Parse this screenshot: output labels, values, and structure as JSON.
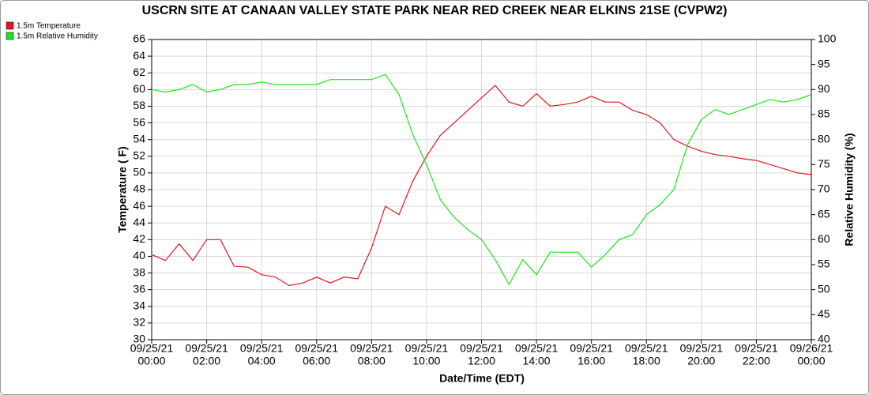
{
  "chart_data": {
    "type": "line",
    "title": "USCRN SITE AT CANAAN VALLEY STATE PARK NEAR RED CREEK NEAR ELKINS 21SE (CVPW2)",
    "x_label": "Date/Time (EDT)",
    "y_label": "Temperature ( F)",
    "y2_label": "Relative Humidity (%)",
    "grid": true,
    "legend": "top-left",
    "x": [
      "09/25/21 00:00",
      "09/25/21 00:30",
      "09/25/21 01:00",
      "09/25/21 01:30",
      "09/25/21 02:00",
      "09/25/21 02:30",
      "09/25/21 03:00",
      "09/25/21 03:30",
      "09/25/21 04:00",
      "09/25/21 04:30",
      "09/25/21 05:00",
      "09/25/21 05:30",
      "09/25/21 06:00",
      "09/25/21 06:30",
      "09/25/21 07:00",
      "09/25/21 07:30",
      "09/25/21 08:00",
      "09/25/21 08:30",
      "09/25/21 09:00",
      "09/25/21 09:30",
      "09/25/21 10:00",
      "09/25/21 10:30",
      "09/25/21 11:00",
      "09/25/21 11:30",
      "09/25/21 12:00",
      "09/25/21 12:30",
      "09/25/21 13:00",
      "09/25/21 13:30",
      "09/25/21 14:00",
      "09/25/21 14:30",
      "09/25/21 15:00",
      "09/25/21 15:30",
      "09/25/21 16:00",
      "09/25/21 16:30",
      "09/25/21 17:00",
      "09/25/21 17:30",
      "09/25/21 18:00",
      "09/25/21 18:30",
      "09/25/21 19:00",
      "09/25/21 19:30",
      "09/25/21 20:00",
      "09/25/21 20:30",
      "09/25/21 21:00",
      "09/25/21 21:30",
      "09/25/21 22:00",
      "09/25/21 22:30",
      "09/25/21 23:00",
      "09/25/21 23:30",
      "09/26/21 00:00"
    ],
    "series": [
      {
        "name": "1.5m Temperature",
        "color": "#e8141e",
        "axis": "y",
        "values": [
          40.2,
          39.5,
          41.5,
          39.5,
          42,
          42,
          38.8,
          38.7,
          37.8,
          37.5,
          36.5,
          36.8,
          37.5,
          36.8,
          37.5,
          37.3,
          41,
          46,
          45,
          49,
          52,
          54.5,
          56,
          57.5,
          59,
          60.5,
          58.5,
          58,
          59.5,
          58,
          58.2,
          58.5,
          59.2,
          58.5,
          58.5,
          57.5,
          57,
          56,
          54,
          53.2,
          52.6,
          52.2,
          52,
          51.7,
          51.5,
          51,
          50.5,
          50,
          49.8
        ]
      },
      {
        "name": "1.5m Relative Humidity",
        "color": "#19e619",
        "axis": "y2",
        "values": [
          90,
          89.5,
          90,
          91,
          89.5,
          90,
          91,
          91,
          91.5,
          91,
          91,
          91,
          91,
          92,
          92,
          92,
          92,
          93,
          89,
          81,
          75,
          68,
          64.5,
          62,
          60,
          56,
          51,
          56,
          53,
          57.5,
          57.5,
          57.5,
          54.5,
          57,
          60,
          61,
          65,
          67,
          70,
          79,
          84,
          86,
          85,
          86,
          87,
          88,
          87.5,
          88,
          89
        ]
      }
    ],
    "xlim": [
      "09/25/21 00:00",
      "09/26/21 00:00"
    ],
    "xticks": [
      {
        "value": "09/25/21 00:00",
        "label": [
          "09/25/21",
          "00:00"
        ]
      },
      {
        "value": "09/25/21 02:00",
        "label": [
          "09/25/21",
          "02:00"
        ]
      },
      {
        "value": "09/25/21 04:00",
        "label": [
          "09/25/21",
          "04:00"
        ]
      },
      {
        "value": "09/25/21 06:00",
        "label": [
          "09/25/21",
          "06:00"
        ]
      },
      {
        "value": "09/25/21 08:00",
        "label": [
          "09/25/21",
          "08:00"
        ]
      },
      {
        "value": "09/25/21 10:00",
        "label": [
          "09/25/21",
          "10:00"
        ]
      },
      {
        "value": "09/25/21 12:00",
        "label": [
          "09/25/21",
          "12:00"
        ]
      },
      {
        "value": "09/25/21 14:00",
        "label": [
          "09/25/21",
          "14:00"
        ]
      },
      {
        "value": "09/25/21 16:00",
        "label": [
          "09/25/21",
          "16:00"
        ]
      },
      {
        "value": "09/25/21 18:00",
        "label": [
          "09/25/21",
          "18:00"
        ]
      },
      {
        "value": "09/25/21 20:00",
        "label": [
          "09/25/21",
          "20:00"
        ]
      },
      {
        "value": "09/25/21 22:00",
        "label": [
          "09/25/21",
          "22:00"
        ]
      },
      {
        "value": "09/26/21 00:00",
        "label": [
          "09/26/21",
          "00:00"
        ]
      }
    ],
    "ylim": [
      30,
      66
    ],
    "yticks": [
      30,
      32,
      34,
      36,
      38,
      40,
      42,
      44,
      46,
      48,
      50,
      52,
      54,
      56,
      58,
      60,
      62,
      64,
      66
    ],
    "y2lim": [
      40,
      100
    ],
    "y2ticks": [
      40,
      45,
      50,
      55,
      60,
      65,
      70,
      75,
      80,
      85,
      90,
      95,
      100
    ]
  }
}
